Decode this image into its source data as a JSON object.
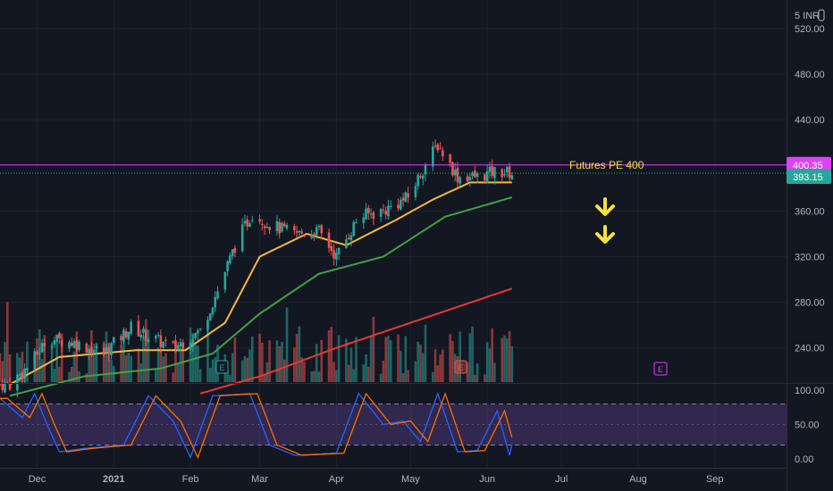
{
  "currency_label": "5 INR",
  "price_axis": {
    "ticks": [
      "520.00",
      "480.00",
      "440.00",
      "360.00",
      "320.00",
      "280.00",
      "240.00"
    ],
    "ylim": [
      210,
      545
    ]
  },
  "osc_axis": {
    "ticks": [
      "100.00",
      "50.00",
      "0.00"
    ],
    "ylim": [
      -12,
      108
    ],
    "upper_band": 80,
    "lower_band": 20
  },
  "time_axis": {
    "labels": [
      "Dec",
      "2021",
      "Feb",
      "Mar",
      "Apr",
      "May",
      "Jun",
      "Jul",
      "Aug",
      "Sep"
    ]
  },
  "price_tags": {
    "resistance": "400.35",
    "last": "393.15"
  },
  "annotation": {
    "text": "Futures PE 400"
  },
  "earnings_marker": "E",
  "colors": {
    "background": "#131722",
    "up": "#26a69a",
    "down": "#ef5350",
    "ma_fast": "#f5b83d",
    "ma_mid": "#43a047",
    "ma_slow": "#e53935",
    "resistance": "#e040fb",
    "osc_k": "#2962ff",
    "osc_d": "#ff6d00",
    "osc_band": "#7e57c2",
    "arrow": "#f5e23a"
  },
  "icons": [
    "arrow-down-icon",
    "earnings-icon"
  ],
  "chart_data": {
    "type": "candlestick",
    "symbol_currency": "INR",
    "resistance_level": 400.35,
    "last_price": 393.15,
    "annotation": "Futures PE 400",
    "price_keypoints": [
      [
        "2020-11-20",
        208
      ],
      [
        "2020-11-28",
        225
      ],
      [
        "2020-12-05",
        248
      ],
      [
        "2020-12-15",
        245
      ],
      [
        "2020-12-28",
        236
      ],
      [
        "2021-01-08",
        258
      ],
      [
        "2021-01-15",
        250
      ],
      [
        "2021-01-25",
        240
      ],
      [
        "2021-02-05",
        255
      ],
      [
        "2021-02-12",
        290
      ],
      [
        "2021-02-20",
        335
      ],
      [
        "2021-02-26",
        358
      ],
      [
        "2021-03-05",
        348
      ],
      [
        "2021-03-15",
        340
      ],
      [
        "2021-03-25",
        342
      ],
      [
        "2021-04-01",
        320
      ],
      [
        "2021-04-10",
        355
      ],
      [
        "2021-04-20",
        360
      ],
      [
        "2021-04-30",
        372
      ],
      [
        "2021-05-08",
        405
      ],
      [
        "2021-05-12",
        418
      ],
      [
        "2021-05-20",
        390
      ],
      [
        "2021-05-28",
        390
      ],
      [
        "2021-06-05",
        395
      ],
      [
        "2021-06-11",
        393
      ]
    ],
    "moving_averages": [
      {
        "kind": "fast",
        "keypoints": [
          [
            "2020-11-20",
            208
          ],
          [
            "2020-12-10",
            232
          ],
          [
            "2021-01-10",
            238
          ],
          [
            "2021-01-30",
            238
          ],
          [
            "2021-02-15",
            262
          ],
          [
            "2021-03-01",
            320
          ],
          [
            "2021-03-20",
            340
          ],
          [
            "2021-04-05",
            330
          ],
          [
            "2021-04-25",
            352
          ],
          [
            "2021-05-10",
            370
          ],
          [
            "2021-05-25",
            385
          ],
          [
            "2021-06-11",
            385
          ]
        ]
      },
      {
        "kind": "mid",
        "keypoints": [
          [
            "2020-11-20",
            198
          ],
          [
            "2020-12-20",
            215
          ],
          [
            "2021-01-20",
            222
          ],
          [
            "2021-02-10",
            235
          ],
          [
            "2021-03-01",
            270
          ],
          [
            "2021-03-25",
            305
          ],
          [
            "2021-04-20",
            320
          ],
          [
            "2021-05-15",
            355
          ],
          [
            "2021-06-11",
            372
          ]
        ]
      },
      {
        "kind": "slow",
        "keypoints": [
          [
            "2021-02-05",
            200
          ],
          [
            "2021-03-01",
            215
          ],
          [
            "2021-04-01",
            240
          ],
          [
            "2021-05-01",
            262
          ],
          [
            "2021-06-11",
            292
          ]
        ]
      }
    ],
    "volume_note": "relative bar heights",
    "oscillator": {
      "upper_band": 80,
      "lower_band": 20,
      "k_keypoints": [
        [
          "2020-11-16",
          88
        ],
        [
          "2020-11-25",
          60
        ],
        [
          "2020-11-30",
          95
        ],
        [
          "2020-12-05",
          50
        ],
        [
          "2020-12-10",
          10
        ],
        [
          "2020-12-20",
          15
        ],
        [
          "2021-01-05",
          20
        ],
        [
          "2021-01-15",
          92
        ],
        [
          "2021-01-25",
          55
        ],
        [
          "2021-02-01",
          2
        ],
        [
          "2021-02-10",
          92
        ],
        [
          "2021-02-25",
          95
        ],
        [
          "2021-03-05",
          20
        ],
        [
          "2021-03-15",
          5
        ],
        [
          "2021-04-01",
          8
        ],
        [
          "2021-04-10",
          95
        ],
        [
          "2021-04-20",
          50
        ],
        [
          "2021-04-28",
          55
        ],
        [
          "2021-05-05",
          25
        ],
        [
          "2021-05-12",
          95
        ],
        [
          "2021-05-20",
          10
        ],
        [
          "2021-05-28",
          12
        ],
        [
          "2021-06-05",
          70
        ],
        [
          "2021-06-10",
          5
        ],
        [
          "2021-06-11",
          20
        ]
      ]
    },
    "earnings_dates": [
      "2021-02-05",
      "2021-05-20",
      "2021-07-25"
    ],
    "x_range": [
      "2020-11-16",
      "2021-09-30"
    ]
  }
}
